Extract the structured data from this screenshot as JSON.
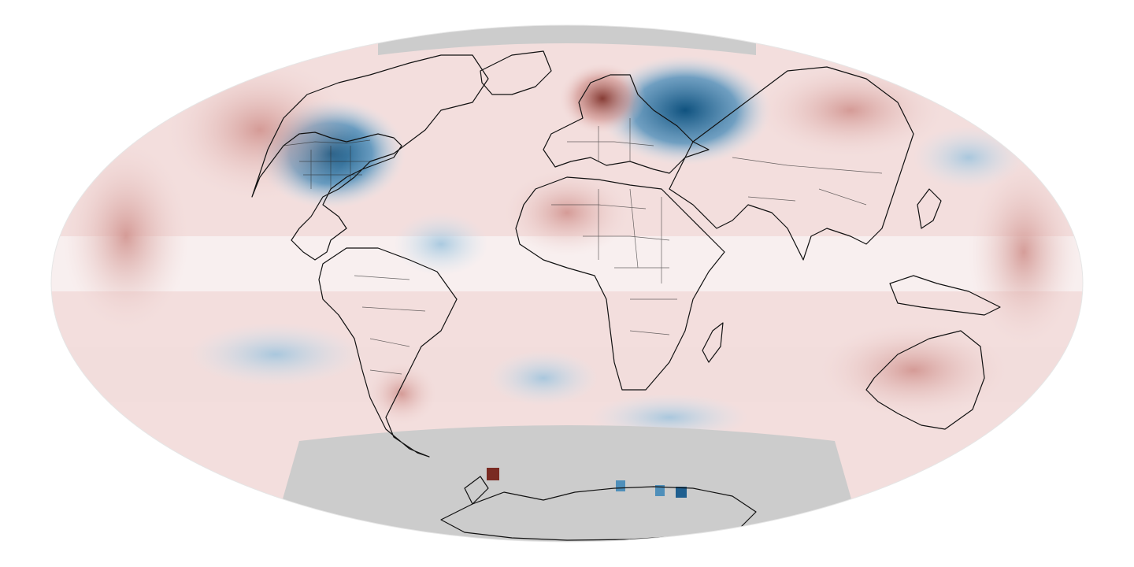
{
  "map": {
    "projection": "mollweide",
    "color_scale": {
      "cold_strong": "#0f527f",
      "cold_mid": "#4f8fba",
      "cold_light": "#d3e6f1",
      "neutral": "#f8f3f2",
      "warm_light": "#f0d6d4",
      "warm_mid": "#cf8f8a",
      "warm_strong": "#7a2a22",
      "no_data": "#cccccc",
      "coastline": "#111111"
    },
    "anomalies": [
      {
        "region": "north-america-central",
        "type": "cold",
        "strength": 0.9
      },
      {
        "region": "western-russia",
        "type": "cold",
        "strength": 1.0
      },
      {
        "region": "scandinavia",
        "type": "warm",
        "strength": 0.8
      },
      {
        "region": "alaska-canada",
        "type": "warm",
        "strength": 0.6
      },
      {
        "region": "sahara",
        "type": "warm",
        "strength": 0.6
      },
      {
        "region": "siberia",
        "type": "warm",
        "strength": 0.55
      },
      {
        "region": "southern-ocean",
        "type": "cold",
        "strength": 0.5
      },
      {
        "region": "patagonia",
        "type": "warm",
        "strength": 0.6
      },
      {
        "region": "arctic",
        "type": "no-data",
        "strength": 0
      },
      {
        "region": "antarctica",
        "type": "no-data",
        "strength": 0
      }
    ]
  }
}
